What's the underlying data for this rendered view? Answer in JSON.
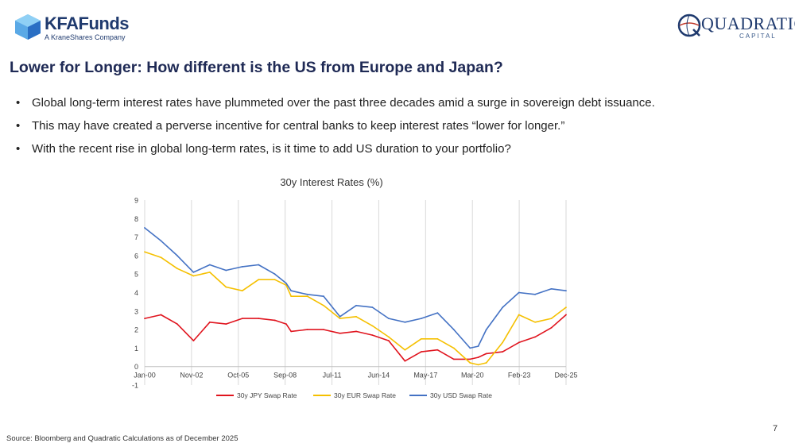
{
  "header": {
    "left_logo": {
      "name": "KFAFunds",
      "subtitle": "A KraneShares Company",
      "color": "#1f3a6e"
    },
    "right_logo": {
      "name": "QUADRATIC",
      "subtitle": "CAPITAL",
      "color": "#1f3a6e"
    }
  },
  "page": {
    "title": "Lower for Longer: How different is the US from Europe and Japan?",
    "bullets": [
      "Global long-term interest rates have plummeted over the past three decades amid a surge in sovereign debt issuance.",
      "This may have created a perverse incentive for central banks to keep interest rates “lower for longer.”",
      "With the recent rise in global long-term rates, is it time to add US duration to your portfolio?"
    ],
    "source": "Source: Bloomberg and Quadratic Calculations as of December 2025",
    "page_number": "7"
  },
  "chart_data": {
    "type": "line",
    "title": "30y Interest Rates (%)",
    "x_tick_labels": [
      "Jan-00",
      "Nov-02",
      "Oct-05",
      "Sep-08",
      "Jul-11",
      "Jun-14",
      "May-17",
      "Mar-20",
      "Feb-23",
      "Dec-25"
    ],
    "x_range": [
      "Jan-00",
      "Dec-25"
    ],
    "ylim": [
      -1,
      9
    ],
    "y_ticks": [
      "-1",
      "0",
      "1",
      "2",
      "3",
      "4",
      "5",
      "6",
      "7",
      "8",
      "9"
    ],
    "grid": "vertical",
    "legend_position": "bottom",
    "x": [
      2000.0,
      2001.0,
      2002.0,
      2003.0,
      2004.0,
      2005.0,
      2006.0,
      2007.0,
      2008.0,
      2008.7,
      2009.0,
      2010.0,
      2011.0,
      2012.0,
      2013.0,
      2014.0,
      2015.0,
      2016.0,
      2017.0,
      2018.0,
      2019.0,
      2020.0,
      2020.5,
      2021.0,
      2022.0,
      2023.0,
      2024.0,
      2025.0,
      2025.9
    ],
    "series": [
      {
        "name": "30y JPY Swap Rate",
        "color": "#e0141e",
        "values": [
          2.6,
          2.8,
          2.3,
          1.4,
          2.4,
          2.3,
          2.6,
          2.6,
          2.5,
          2.3,
          1.9,
          2.0,
          2.0,
          1.8,
          1.9,
          1.7,
          1.4,
          0.3,
          0.8,
          0.9,
          0.4,
          0.4,
          0.5,
          0.7,
          0.8,
          1.3,
          1.6,
          2.1,
          2.8
        ]
      },
      {
        "name": "30y EUR Swap Rate",
        "color": "#f5c000",
        "values": [
          6.2,
          5.9,
          5.3,
          4.9,
          5.1,
          4.3,
          4.1,
          4.7,
          4.7,
          4.4,
          3.8,
          3.8,
          3.3,
          2.6,
          2.7,
          2.2,
          1.6,
          0.9,
          1.5,
          1.5,
          1.0,
          0.2,
          0.1,
          0.2,
          1.3,
          2.8,
          2.4,
          2.6,
          3.2
        ]
      },
      {
        "name": "30y USD Swap Rate",
        "color": "#4472c4",
        "values": [
          7.5,
          6.8,
          6.0,
          5.1,
          5.5,
          5.2,
          5.4,
          5.5,
          5.0,
          4.5,
          4.1,
          3.9,
          3.8,
          2.7,
          3.3,
          3.2,
          2.6,
          2.4,
          2.6,
          2.9,
          2.0,
          1.0,
          1.1,
          2.0,
          3.2,
          4.0,
          3.9,
          4.2,
          4.1
        ]
      }
    ]
  }
}
